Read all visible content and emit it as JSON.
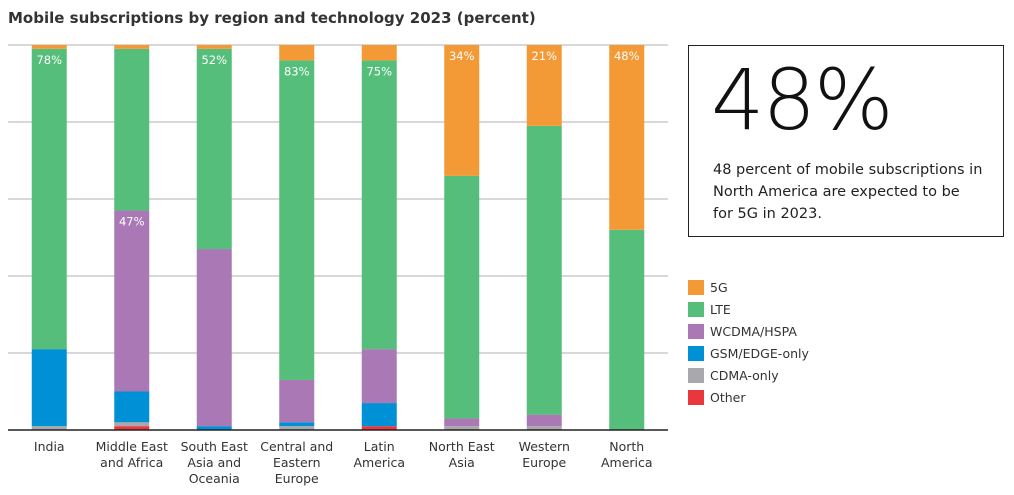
{
  "title": "Mobile subscriptions by region and technology 2023 (percent)",
  "callout": {
    "value": "48%",
    "text": "48 percent of mobile subscriptions in North America are expected to be for 5G in 2023."
  },
  "chart_data": {
    "type": "bar",
    "stacked": true,
    "title": "Mobile subscriptions by region and technology 2023 (percent)",
    "ylim": [
      0,
      100
    ],
    "grid": true,
    "legend_placement": "right",
    "categories": [
      "India",
      "Middle East and Africa",
      "South East Asia and Oceania",
      "Central and Eastern Europe",
      "Latin America",
      "North East Asia",
      "Western Europe",
      "North America"
    ],
    "category_lines": [
      [
        "India"
      ],
      [
        "Middle East",
        "and Africa"
      ],
      [
        "South East",
        "Asia and",
        "Oceania"
      ],
      [
        "Central and",
        "Eastern",
        "Europe"
      ],
      [
        "Latin",
        "America"
      ],
      [
        "North East",
        "Asia"
      ],
      [
        "Western",
        "Europe"
      ],
      [
        "North",
        "America"
      ]
    ],
    "series": [
      {
        "name": "Other",
        "color": "#E8383D",
        "values": [
          0,
          1,
          0,
          0,
          1,
          0,
          0,
          0
        ]
      },
      {
        "name": "CDMA-only",
        "color": "#A9A9AD",
        "values": [
          1,
          1,
          0,
          1,
          0,
          1,
          1,
          0
        ]
      },
      {
        "name": "GSM/EDGE-only",
        "color": "#0090D6",
        "values": [
          20,
          8,
          1,
          1,
          6,
          0,
          0,
          0
        ]
      },
      {
        "name": "WCDMA/HSPA",
        "color": "#A978B5",
        "values": [
          0,
          47,
          46,
          11,
          14,
          2,
          3,
          0
        ]
      },
      {
        "name": "LTE",
        "color": "#55BE7A",
        "values": [
          78,
          42,
          52,
          83,
          75,
          63,
          75,
          52
        ]
      },
      {
        "name": "5G",
        "color": "#F39A36",
        "values": [
          1,
          1,
          1,
          4,
          4,
          34,
          21,
          48
        ]
      }
    ],
    "data_labels": [
      {
        "category": "India",
        "series": "LTE",
        "text": "78%"
      },
      {
        "category": "Middle East and Africa",
        "series": "WCDMA/HSPA",
        "text": "47%"
      },
      {
        "category": "South East Asia and Oceania",
        "series": "LTE",
        "text": "52%"
      },
      {
        "category": "Central and Eastern Europe",
        "series": "LTE",
        "text": "83%"
      },
      {
        "category": "Latin America",
        "series": "LTE",
        "text": "75%"
      },
      {
        "category": "North East Asia",
        "series": "5G",
        "text": "34%"
      },
      {
        "category": "Western Europe",
        "series": "5G",
        "text": "21%"
      },
      {
        "category": "North America",
        "series": "5G",
        "text": "48%"
      }
    ],
    "legend_order": [
      "5G",
      "LTE",
      "WCDMA/HSPA",
      "GSM/EDGE-only",
      "CDMA-only",
      "Other"
    ]
  }
}
